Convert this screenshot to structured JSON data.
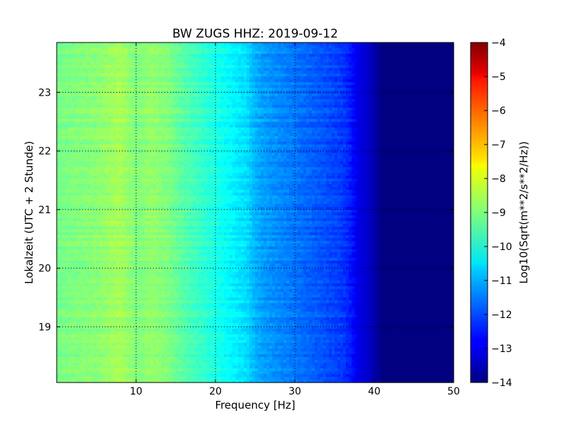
{
  "chart_data": {
    "type": "heatmap",
    "title": "BW ZUGS HHZ: 2019-09-12",
    "xlabel": "Frequency [Hz]",
    "ylabel": "Lokalzeit (UTC + 2 Stunde)",
    "xlim": [
      0,
      50
    ],
    "ylim": [
      23.85,
      18.05
    ],
    "xticks": [
      10,
      20,
      30,
      40,
      50
    ],
    "yticks": [
      19,
      20,
      21,
      22,
      23
    ],
    "grid": true,
    "colormap": "jet",
    "colorbar": {
      "label": "Log10(Sqrt(m**2/s**2/Hz))",
      "range": [
        -14,
        -4
      ],
      "ticks": [
        -4,
        -5,
        -6,
        -7,
        -8,
        -9,
        -10,
        -11,
        -12,
        -13,
        -14
      ]
    },
    "spectrum_profile": {
      "frequency_hz": [
        0,
        2,
        5,
        8,
        10,
        12,
        14,
        16,
        18,
        20,
        22,
        24,
        25,
        26,
        28,
        30,
        32,
        34,
        36,
        37,
        38,
        39,
        40,
        41,
        45,
        50
      ],
      "log10_amplitude": [
        -9.1,
        -9.0,
        -8.9,
        -8.6,
        -9.0,
        -8.8,
        -9.0,
        -9.4,
        -9.7,
        -10.0,
        -10.3,
        -10.6,
        -11.0,
        -11.2,
        -11.4,
        -11.6,
        -11.8,
        -12.0,
        -12.2,
        -12.5,
        -13.0,
        -13.2,
        -13.5,
        -14.0,
        -14.0,
        -14.0
      ]
    }
  }
}
